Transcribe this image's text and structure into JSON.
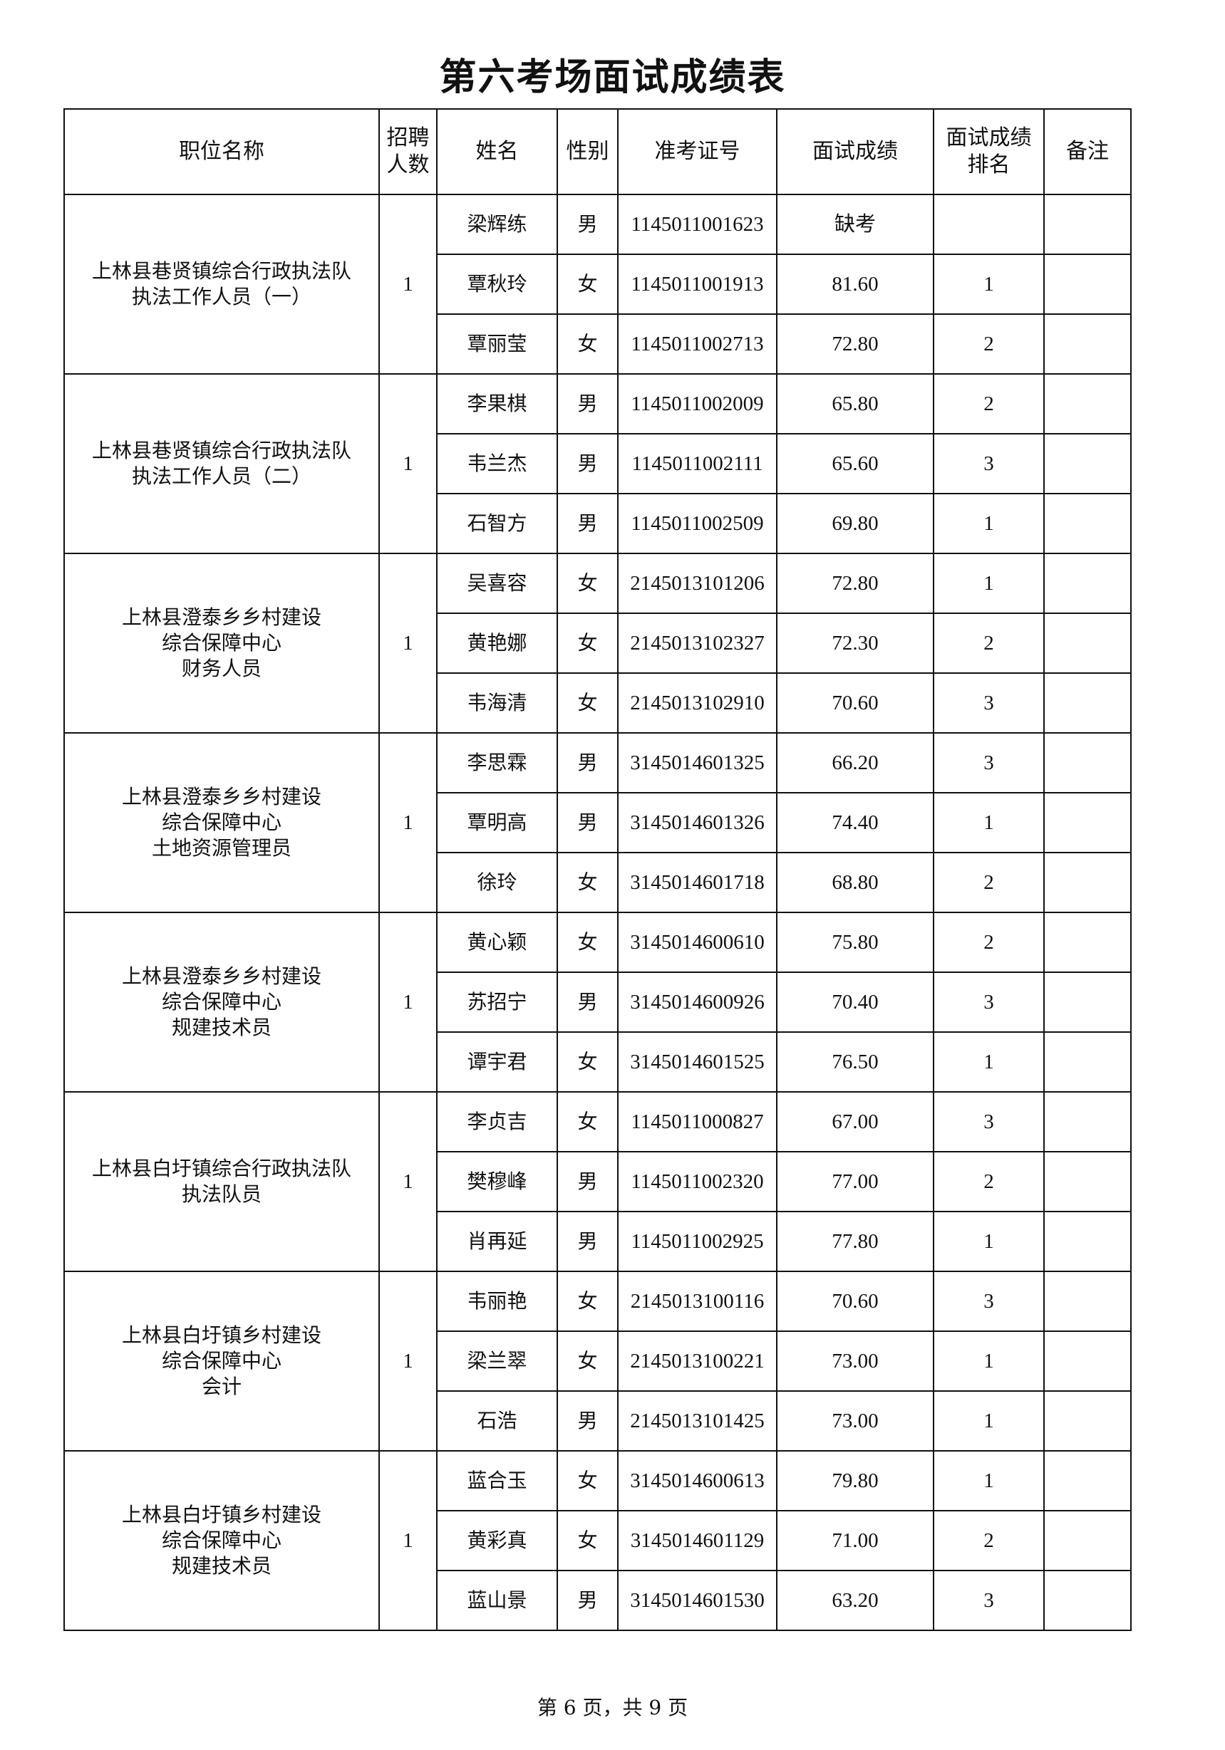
{
  "title": "第六考场面试成绩表",
  "headers": [
    "职位名称",
    "招聘人数",
    "姓名",
    "性别",
    "准考证号",
    "面试成绩",
    "面试成绩排名",
    "备注"
  ],
  "groups": [
    {
      "position": [
        "上林县巷贤镇综合行政执法队",
        "执法工作人员（一）"
      ],
      "quota": "1",
      "rows": [
        [
          "梁辉练",
          "男",
          "1145011001623",
          "缺考",
          ""
        ],
        [
          "覃秋玲",
          "女",
          "1145011001913",
          "81.60",
          "1"
        ],
        [
          "覃丽莹",
          "女",
          "1145011002713",
          "72.80",
          "2"
        ]
      ]
    },
    {
      "position": [
        "上林县巷贤镇综合行政执法队",
        "执法工作人员（二）"
      ],
      "quota": "1",
      "rows": [
        [
          "李果棋",
          "男",
          "1145011002009",
          "65.80",
          "2"
        ],
        [
          "韦兰杰",
          "男",
          "1145011002111",
          "65.60",
          "3"
        ],
        [
          "石智方",
          "男",
          "1145011002509",
          "69.80",
          "1"
        ]
      ]
    },
    {
      "position": [
        "上林县澄泰乡乡村建设",
        "综合保障中心",
        "财务人员"
      ],
      "quota": "1",
      "rows": [
        [
          "吴喜容",
          "女",
          "2145013101206",
          "72.80",
          "1"
        ],
        [
          "黄艳娜",
          "女",
          "2145013102327",
          "72.30",
          "2"
        ],
        [
          "韦海清",
          "女",
          "2145013102910",
          "70.60",
          "3"
        ]
      ]
    },
    {
      "position": [
        "上林县澄泰乡乡村建设",
        "综合保障中心",
        "土地资源管理员"
      ],
      "quota": "1",
      "rows": [
        [
          "李思霖",
          "男",
          "3145014601325",
          "66.20",
          "3"
        ],
        [
          "覃明高",
          "男",
          "3145014601326",
          "74.40",
          "1"
        ],
        [
          "徐玲",
          "女",
          "3145014601718",
          "68.80",
          "2"
        ]
      ]
    },
    {
      "position": [
        "上林县澄泰乡乡村建设",
        "综合保障中心",
        "规建技术员"
      ],
      "quota": "1",
      "rows": [
        [
          "黄心颖",
          "女",
          "3145014600610",
          "75.80",
          "2"
        ],
        [
          "苏招宁",
          "男",
          "3145014600926",
          "70.40",
          "3"
        ],
        [
          "谭宇君",
          "女",
          "3145014601525",
          "76.50",
          "1"
        ]
      ]
    },
    {
      "position": [
        "上林县白圩镇综合行政执法队",
        "执法队员"
      ],
      "quota": "1",
      "rows": [
        [
          "李贞吉",
          "女",
          "1145011000827",
          "67.00",
          "3"
        ],
        [
          "樊穆峰",
          "男",
          "1145011002320",
          "77.00",
          "2"
        ],
        [
          "肖再延",
          "男",
          "1145011002925",
          "77.80",
          "1"
        ]
      ]
    },
    {
      "position": [
        "上林县白圩镇乡村建设",
        "综合保障中心",
        "会计"
      ],
      "quota": "1",
      "rows": [
        [
          "韦丽艳",
          "女",
          "2145013100116",
          "70.60",
          "3"
        ],
        [
          "梁兰翠",
          "女",
          "2145013100221",
          "73.00",
          "1"
        ],
        [
          "石浩",
          "男",
          "2145013101425",
          "73.00",
          "1"
        ]
      ]
    },
    {
      "position": [
        "上林县白圩镇乡村建设",
        "综合保障中心",
        "规建技术员"
      ],
      "quota": "1",
      "rows": [
        [
          "蓝合玉",
          "女",
          "3145014600613",
          "79.80",
          "1"
        ],
        [
          "黄彩真",
          "女",
          "3145014601129",
          "71.00",
          "2"
        ],
        [
          "蓝山景",
          "男",
          "3145014601530",
          "63.20",
          "3"
        ]
      ]
    }
  ],
  "footer": "第 6 页，共 9 页"
}
